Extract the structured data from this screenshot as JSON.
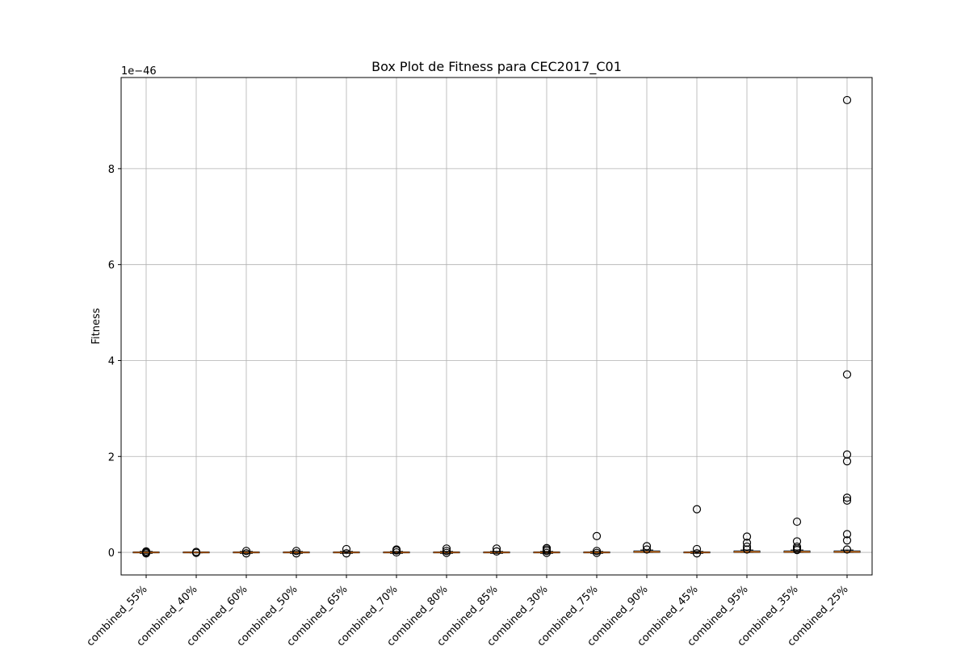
{
  "chart_data": {
    "type": "box",
    "title": "Box Plot de Fitness para CEC2017_C01",
    "xlabel": "",
    "ylabel": "Fitness",
    "offset_label": "1e−46",
    "y_unit_exponent": -46,
    "ylim": [
      -0.47,
      9.9
    ],
    "yticks": [
      0,
      2,
      4,
      6,
      8
    ],
    "grid": true,
    "categories": [
      "combined_55%",
      "combined_40%",
      "combined_60%",
      "combined_50%",
      "combined_65%",
      "combined_70%",
      "combined_80%",
      "combined_85%",
      "combined_30%",
      "combined_75%",
      "combined_90%",
      "combined_45%",
      "combined_95%",
      "combined_35%",
      "combined_25%"
    ],
    "boxes": [
      {
        "q1": -0.01,
        "median": 0.0,
        "q3": 0.01,
        "whisker_low": -0.02,
        "whisker_high": 0.02,
        "fliers": [
          -0.02,
          0.0,
          0.02
        ]
      },
      {
        "q1": -0.01,
        "median": 0.0,
        "q3": 0.01,
        "whisker_low": -0.01,
        "whisker_high": 0.01,
        "fliers": [
          -0.01,
          0.01
        ]
      },
      {
        "q1": -0.01,
        "median": 0.0,
        "q3": 0.01,
        "whisker_low": -0.02,
        "whisker_high": 0.02,
        "fliers": [
          -0.02,
          0.03
        ]
      },
      {
        "q1": -0.01,
        "median": 0.0,
        "q3": 0.01,
        "whisker_low": -0.02,
        "whisker_high": 0.02,
        "fliers": [
          -0.02,
          0.03
        ]
      },
      {
        "q1": -0.01,
        "median": 0.0,
        "q3": 0.01,
        "whisker_low": -0.02,
        "whisker_high": 0.02,
        "fliers": [
          -0.02,
          0.07
        ]
      },
      {
        "q1": -0.01,
        "median": 0.0,
        "q3": 0.01,
        "whisker_low": -0.02,
        "whisker_high": 0.02,
        "fliers": [
          0.0,
          0.04,
          0.06
        ]
      },
      {
        "q1": -0.01,
        "median": 0.0,
        "q3": 0.01,
        "whisker_low": -0.02,
        "whisker_high": 0.02,
        "fliers": [
          -0.01,
          0.03,
          0.08
        ]
      },
      {
        "q1": -0.01,
        "median": 0.0,
        "q3": 0.01,
        "whisker_low": -0.02,
        "whisker_high": 0.02,
        "fliers": [
          0.02,
          0.08
        ]
      },
      {
        "q1": -0.01,
        "median": 0.0,
        "q3": 0.01,
        "whisker_low": -0.02,
        "whisker_high": 0.02,
        "fliers": [
          -0.01,
          0.03,
          0.06,
          0.09
        ]
      },
      {
        "q1": -0.01,
        "median": 0.0,
        "q3": 0.01,
        "whisker_low": -0.02,
        "whisker_high": 0.02,
        "fliers": [
          -0.01,
          0.03,
          0.34
        ]
      },
      {
        "q1": 0.0,
        "median": 0.01,
        "q3": 0.03,
        "whisker_low": 0.0,
        "whisker_high": 0.05,
        "fliers": [
          0.06,
          0.13
        ]
      },
      {
        "q1": -0.01,
        "median": 0.0,
        "q3": 0.01,
        "whisker_low": -0.02,
        "whisker_high": 0.02,
        "fliers": [
          -0.02,
          0.07,
          0.9
        ]
      },
      {
        "q1": 0.0,
        "median": 0.01,
        "q3": 0.03,
        "whisker_low": 0.0,
        "whisker_high": 0.05,
        "fliers": [
          0.06,
          0.12,
          0.2,
          0.33
        ]
      },
      {
        "q1": 0.0,
        "median": 0.01,
        "q3": 0.03,
        "whisker_low": 0.0,
        "whisker_high": 0.05,
        "fliers": [
          0.05,
          0.08,
          0.12,
          0.23,
          0.64
        ]
      },
      {
        "q1": 0.0,
        "median": 0.01,
        "q3": 0.03,
        "whisker_low": 0.0,
        "whisker_high": 0.05,
        "fliers": [
          0.06,
          0.25,
          0.38,
          1.08,
          1.14,
          1.9,
          2.04,
          3.71,
          9.43
        ]
      }
    ]
  }
}
